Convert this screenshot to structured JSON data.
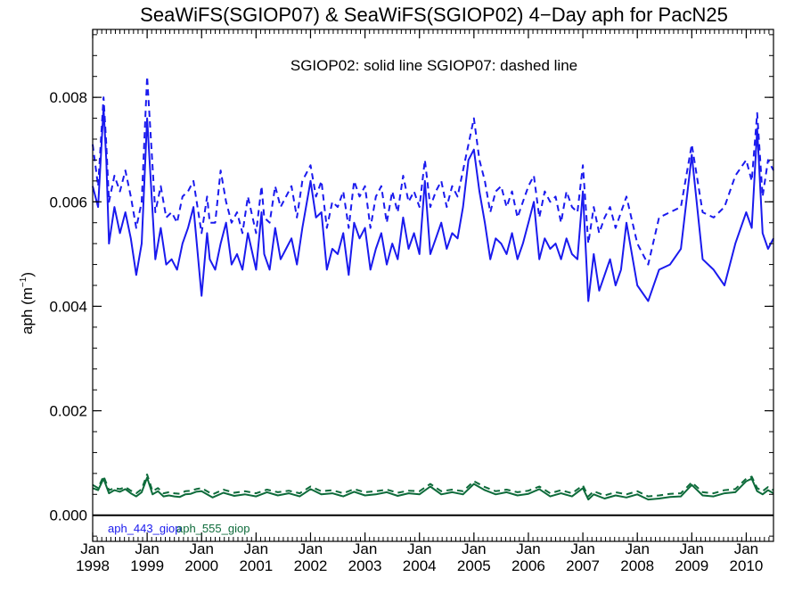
{
  "chart_data": {
    "type": "line",
    "title": "SeaWiFS(SGIOP07) & SeaWiFS(SGIOP02) 4−Day aph for PacN25",
    "annotation": "SGIOP02: solid line   SGIOP07: dashed line",
    "ylabel_main": "aph (m",
    "ylabel_sup": "−1",
    "ylabel_close": ")",
    "xlabel": "",
    "ylim": [
      -0.0005,
      0.0093
    ],
    "xlim": [
      1998.0,
      2010.5
    ],
    "x_ticks": [
      {
        "month": "Jan",
        "year": "1998",
        "value": 1998
      },
      {
        "month": "Jan",
        "year": "1999",
        "value": 1999
      },
      {
        "month": "Jan",
        "year": "2000",
        "value": 2000
      },
      {
        "month": "Jan",
        "year": "2001",
        "value": 2001
      },
      {
        "month": "Jan",
        "year": "2002",
        "value": 2002
      },
      {
        "month": "Jan",
        "year": "2003",
        "value": 2003
      },
      {
        "month": "Jan",
        "year": "2004",
        "value": 2004
      },
      {
        "month": "Jan",
        "year": "2005",
        "value": 2005
      },
      {
        "month": "Jan",
        "year": "2006",
        "value": 2006
      },
      {
        "month": "Jan",
        "year": "2007",
        "value": 2007
      },
      {
        "month": "Jan",
        "year": "2008",
        "value": 2008
      },
      {
        "month": "Jan",
        "year": "2009",
        "value": 2009
      },
      {
        "month": "Jan",
        "year": "2010",
        "value": 2010
      }
    ],
    "y_ticks": [
      "0.000",
      "0.002",
      "0.004",
      "0.006",
      "0.008"
    ],
    "y_tick_values": [
      0,
      0.002,
      0.004,
      0.006,
      0.008
    ],
    "zero_line": 0,
    "legend": [
      {
        "label": "aph_443_giop",
        "color": "#1a1aee"
      },
      {
        "label": "aph_555_giop",
        "color": "#0d6b3a"
      }
    ],
    "series": [
      {
        "name": "aph_443_giop",
        "style": "solid",
        "color": "#1a1aee",
        "x": [
          1998.0,
          1998.1,
          1998.2,
          1998.25,
          1998.3,
          1998.4,
          1998.5,
          1998.6,
          1998.7,
          1998.8,
          1998.9,
          1999.0,
          1999.15,
          1999.25,
          1999.35,
          1999.45,
          1999.55,
          1999.65,
          1999.75,
          1999.85,
          2000.0,
          2000.1,
          2000.15,
          2000.25,
          2000.35,
          2000.45,
          2000.55,
          2000.65,
          2000.75,
          2000.85,
          2001.0,
          2001.1,
          2001.15,
          2001.25,
          2001.35,
          2001.45,
          2001.55,
          2001.65,
          2001.75,
          2001.85,
          2002.0,
          2002.1,
          2002.2,
          2002.3,
          2002.4,
          2002.5,
          2002.6,
          2002.7,
          2002.8,
          2002.9,
          2003.0,
          2003.1,
          2003.2,
          2003.3,
          2003.4,
          2003.5,
          2003.6,
          2003.7,
          2003.8,
          2003.9,
          2004.0,
          2004.1,
          2004.2,
          2004.3,
          2004.4,
          2004.5,
          2004.6,
          2004.7,
          2004.8,
          2004.9,
          2005.0,
          2005.1,
          2005.2,
          2005.3,
          2005.4,
          2005.5,
          2005.6,
          2005.7,
          2005.8,
          2005.9,
          2006.0,
          2006.1,
          2006.2,
          2006.3,
          2006.4,
          2006.5,
          2006.6,
          2006.7,
          2006.8,
          2006.9,
          2007.0,
          2007.1,
          2007.2,
          2007.3,
          2007.4,
          2007.5,
          2007.6,
          2007.7,
          2007.8,
          2008.0,
          2008.2,
          2008.4,
          2008.6,
          2008.8,
          2009.0,
          2009.2,
          2009.4,
          2009.6,
          2009.8,
          2010.0,
          2010.1,
          2010.2,
          2010.3,
          2010.4,
          2010.5
        ],
        "y": [
          0.0063,
          0.0059,
          0.0078,
          0.0068,
          0.0052,
          0.0059,
          0.0054,
          0.0058,
          0.0053,
          0.0046,
          0.0052,
          0.0076,
          0.0049,
          0.0055,
          0.0048,
          0.0049,
          0.0047,
          0.0052,
          0.0055,
          0.0059,
          0.0042,
          0.0054,
          0.0049,
          0.0047,
          0.0052,
          0.0056,
          0.0048,
          0.005,
          0.0047,
          0.0054,
          0.0047,
          0.0058,
          0.005,
          0.0047,
          0.0055,
          0.0049,
          0.0051,
          0.0053,
          0.0048,
          0.0055,
          0.0064,
          0.0057,
          0.0058,
          0.0047,
          0.0051,
          0.005,
          0.0054,
          0.0046,
          0.0056,
          0.0053,
          0.0055,
          0.0047,
          0.0051,
          0.0054,
          0.0048,
          0.0052,
          0.0049,
          0.0057,
          0.0051,
          0.0054,
          0.005,
          0.0064,
          0.005,
          0.0053,
          0.0056,
          0.0051,
          0.0054,
          0.0053,
          0.0059,
          0.0068,
          0.007,
          0.0062,
          0.0056,
          0.0049,
          0.0053,
          0.0052,
          0.005,
          0.0054,
          0.0049,
          0.0052,
          0.0056,
          0.006,
          0.0049,
          0.0053,
          0.0051,
          0.0052,
          0.0049,
          0.0053,
          0.005,
          0.0049,
          0.0062,
          0.0041,
          0.005,
          0.0043,
          0.0046,
          0.0049,
          0.0044,
          0.0047,
          0.0056,
          0.0044,
          0.0041,
          0.0047,
          0.0048,
          0.0051,
          0.0069,
          0.0049,
          0.0047,
          0.0044,
          0.0052,
          0.0058,
          0.0055,
          0.0074,
          0.0054,
          0.0051,
          0.0053
        ],
        "x_color_hint": ""
      },
      {
        "name": "aph_443_giop",
        "style": "dashed",
        "color": "#1a1aee",
        "x": [
          1998.0,
          1998.1,
          1998.2,
          1998.25,
          1998.3,
          1998.4,
          1998.5,
          1998.6,
          1998.7,
          1998.8,
          1998.9,
          1999.0,
          1999.15,
          1999.25,
          1999.35,
          1999.45,
          1999.55,
          1999.65,
          1999.75,
          1999.85,
          2000.0,
          2000.1,
          2000.15,
          2000.25,
          2000.35,
          2000.45,
          2000.55,
          2000.65,
          2000.75,
          2000.85,
          2001.0,
          2001.1,
          2001.15,
          2001.25,
          2001.35,
          2001.45,
          2001.55,
          2001.65,
          2001.75,
          2001.85,
          2002.0,
          2002.1,
          2002.2,
          2002.3,
          2002.4,
          2002.5,
          2002.6,
          2002.7,
          2002.8,
          2002.9,
          2003.0,
          2003.1,
          2003.2,
          2003.3,
          2003.4,
          2003.5,
          2003.6,
          2003.7,
          2003.8,
          2003.9,
          2004.0,
          2004.1,
          2004.2,
          2004.3,
          2004.4,
          2004.5,
          2004.6,
          2004.7,
          2004.8,
          2004.9,
          2005.0,
          2005.1,
          2005.2,
          2005.3,
          2005.4,
          2005.5,
          2005.6,
          2005.7,
          2005.8,
          2005.9,
          2006.0,
          2006.1,
          2006.2,
          2006.3,
          2006.4,
          2006.5,
          2006.6,
          2006.7,
          2006.8,
          2006.9,
          2007.0,
          2007.1,
          2007.2,
          2007.3,
          2007.4,
          2007.5,
          2007.6,
          2007.7,
          2007.8,
          2008.0,
          2008.2,
          2008.4,
          2008.6,
          2008.8,
          2009.0,
          2009.2,
          2009.4,
          2009.6,
          2009.8,
          2010.0,
          2010.1,
          2010.2,
          2010.3,
          2010.4,
          2010.5
        ],
        "y": [
          0.0071,
          0.0063,
          0.008,
          0.0071,
          0.006,
          0.0065,
          0.0062,
          0.0066,
          0.0061,
          0.0055,
          0.006,
          0.0084,
          0.0058,
          0.0063,
          0.0057,
          0.0058,
          0.0056,
          0.0061,
          0.0062,
          0.0064,
          0.0054,
          0.0061,
          0.0056,
          0.0056,
          0.0066,
          0.006,
          0.0056,
          0.0058,
          0.0054,
          0.0061,
          0.0054,
          0.0063,
          0.0057,
          0.0056,
          0.0063,
          0.0059,
          0.0061,
          0.0063,
          0.0057,
          0.0064,
          0.0067,
          0.0061,
          0.0064,
          0.0055,
          0.006,
          0.0059,
          0.0062,
          0.0055,
          0.0064,
          0.0061,
          0.0063,
          0.0055,
          0.0061,
          0.0063,
          0.0056,
          0.0062,
          0.0058,
          0.0065,
          0.006,
          0.0062,
          0.0059,
          0.0068,
          0.0059,
          0.0062,
          0.0064,
          0.0059,
          0.0063,
          0.0061,
          0.0066,
          0.0071,
          0.0076,
          0.0068,
          0.0064,
          0.0058,
          0.0062,
          0.0063,
          0.0059,
          0.0062,
          0.0057,
          0.006,
          0.0063,
          0.0065,
          0.0057,
          0.0062,
          0.006,
          0.0061,
          0.0056,
          0.0062,
          0.0059,
          0.0058,
          0.0067,
          0.0052,
          0.0059,
          0.0054,
          0.0057,
          0.0059,
          0.0055,
          0.0058,
          0.0061,
          0.0052,
          0.0048,
          0.0057,
          0.0058,
          0.0059,
          0.0071,
          0.0058,
          0.0057,
          0.0059,
          0.0065,
          0.0068,
          0.0064,
          0.0077,
          0.0061,
          0.0068,
          0.0066
        ]
      },
      {
        "name": "aph_555_giop",
        "style": "solid",
        "color": "#0d6b3a",
        "x": [
          1998.0,
          1998.1,
          1998.2,
          1998.3,
          1998.4,
          1998.5,
          1998.6,
          1998.7,
          1998.8,
          1998.9,
          1999.0,
          1999.1,
          1999.2,
          1999.3,
          1999.4,
          1999.5,
          1999.6,
          1999.7,
          1999.8,
          1999.9,
          2000.0,
          2000.2,
          2000.4,
          2000.6,
          2000.8,
          2001.0,
          2001.2,
          2001.4,
          2001.6,
          2001.8,
          2002.0,
          2002.2,
          2002.4,
          2002.6,
          2002.8,
          2003.0,
          2003.2,
          2003.4,
          2003.6,
          2003.8,
          2004.0,
          2004.2,
          2004.4,
          2004.6,
          2004.8,
          2005.0,
          2005.2,
          2005.4,
          2005.6,
          2005.8,
          2006.0,
          2006.2,
          2006.4,
          2006.6,
          2006.8,
          2007.0,
          2007.1,
          2007.2,
          2007.4,
          2007.6,
          2007.8,
          2008.0,
          2008.2,
          2008.4,
          2008.6,
          2008.8,
          2009.0,
          2009.2,
          2009.4,
          2009.6,
          2009.8,
          2010.0,
          2010.1,
          2010.2,
          2010.3,
          2010.4,
          2010.5
        ],
        "y": [
          0.00052,
          0.00048,
          0.0007,
          0.00042,
          0.00048,
          0.00045,
          0.0005,
          0.00042,
          0.00036,
          0.00044,
          0.00072,
          0.0004,
          0.00046,
          0.00036,
          0.00038,
          0.00036,
          0.00035,
          0.0004,
          0.00041,
          0.00045,
          0.00046,
          0.00034,
          0.00043,
          0.00037,
          0.0004,
          0.00036,
          0.00044,
          0.00038,
          0.00042,
          0.00036,
          0.0005,
          0.0004,
          0.00042,
          0.00036,
          0.00045,
          0.00038,
          0.0004,
          0.00044,
          0.00037,
          0.00042,
          0.0004,
          0.00055,
          0.0004,
          0.00044,
          0.0004,
          0.0006,
          0.00048,
          0.0004,
          0.00044,
          0.00038,
          0.00041,
          0.0005,
          0.00036,
          0.00042,
          0.00036,
          0.00052,
          0.0003,
          0.0004,
          0.00032,
          0.00038,
          0.00034,
          0.0004,
          0.0003,
          0.00032,
          0.00035,
          0.00036,
          0.00058,
          0.00038,
          0.00036,
          0.00042,
          0.00044,
          0.00065,
          0.0007,
          0.00046,
          0.0004,
          0.00048,
          0.00042
        ]
      },
      {
        "name": "aph_555_giop",
        "style": "dashed",
        "color": "#0d6b3a",
        "x": [
          1998.0,
          1998.1,
          1998.2,
          1998.3,
          1998.4,
          1998.5,
          1998.6,
          1998.7,
          1998.8,
          1998.9,
          1999.0,
          1999.1,
          1999.2,
          1999.3,
          1999.4,
          1999.5,
          1999.6,
          1999.7,
          1999.8,
          1999.9,
          2000.0,
          2000.2,
          2000.4,
          2000.6,
          2000.8,
          2001.0,
          2001.2,
          2001.4,
          2001.6,
          2001.8,
          2002.0,
          2002.2,
          2002.4,
          2002.6,
          2002.8,
          2003.0,
          2003.2,
          2003.4,
          2003.6,
          2003.8,
          2004.0,
          2004.2,
          2004.4,
          2004.6,
          2004.8,
          2005.0,
          2005.2,
          2005.4,
          2005.6,
          2005.8,
          2006.0,
          2006.2,
          2006.4,
          2006.6,
          2006.8,
          2007.0,
          2007.1,
          2007.2,
          2007.4,
          2007.6,
          2007.8,
          2008.0,
          2008.2,
          2008.4,
          2008.6,
          2008.8,
          2009.0,
          2009.2,
          2009.4,
          2009.6,
          2009.8,
          2010.0,
          2010.1,
          2010.2,
          2010.3,
          2010.4,
          2010.5
        ],
        "y": [
          0.00058,
          0.00052,
          0.00075,
          0.00048,
          0.00052,
          0.0005,
          0.00054,
          0.00047,
          0.00042,
          0.0005,
          0.00078,
          0.00046,
          0.00052,
          0.00042,
          0.00044,
          0.00042,
          0.00041,
          0.00046,
          0.00047,
          0.0005,
          0.00052,
          0.0004,
          0.00049,
          0.00043,
          0.00046,
          0.00042,
          0.00049,
          0.00044,
          0.00047,
          0.00042,
          0.00055,
          0.00046,
          0.00048,
          0.00042,
          0.0005,
          0.00044,
          0.00046,
          0.00049,
          0.00043,
          0.00047,
          0.00046,
          0.0006,
          0.00046,
          0.00049,
          0.00046,
          0.00065,
          0.00054,
          0.00046,
          0.00049,
          0.00044,
          0.00047,
          0.00055,
          0.00042,
          0.00048,
          0.00042,
          0.00057,
          0.00036,
          0.00046,
          0.00038,
          0.00044,
          0.0004,
          0.00046,
          0.00036,
          0.00038,
          0.00041,
          0.00042,
          0.00063,
          0.00044,
          0.00042,
          0.00048,
          0.0005,
          0.0007,
          0.00074,
          0.00052,
          0.00046,
          0.00054,
          0.00048
        ]
      }
    ]
  }
}
